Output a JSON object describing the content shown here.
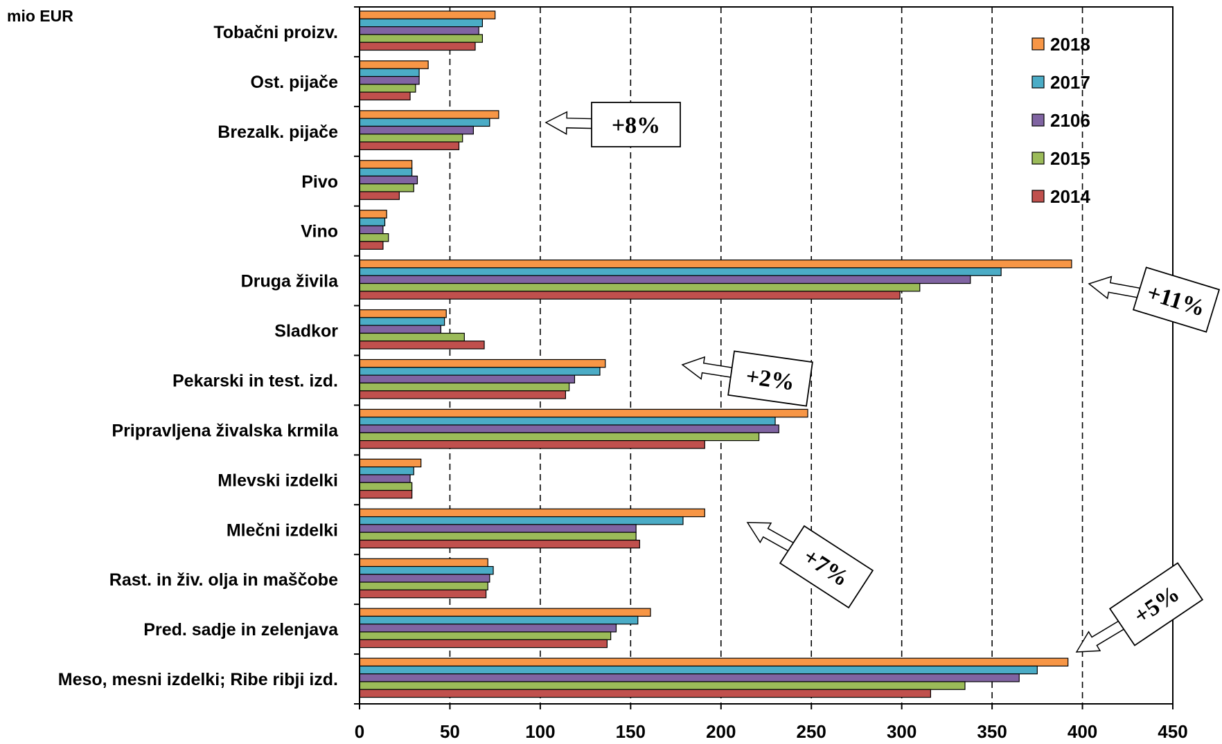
{
  "chart_data": {
    "type": "bar",
    "orientation": "horizontal",
    "unit_label": "mio EUR",
    "xlim": [
      0,
      450
    ],
    "x_ticks": [
      "0",
      "50",
      "100",
      "150",
      "200",
      "250",
      "300",
      "350",
      "400",
      "450"
    ],
    "grid": "vertical dashed",
    "legend_position": "top-right",
    "categories": [
      "Tobačni proizv.",
      "Ost. pijače",
      "Brezalk. pijače",
      "Pivo",
      "Vino",
      "Druga živila",
      "Sladkor",
      "Pekarski in test. izd.",
      "Pripravljena živalska krmila",
      "Mlevski izdelki",
      "Mlečni izdelki",
      "Rast. in živ. olja in maščobe",
      "Pred. sadje in zelenjava",
      "Meso, mesni izdelki; Ribe ribji izd."
    ],
    "series": [
      {
        "name": "2018",
        "color": "#F79646",
        "values": [
          75,
          38,
          77,
          29,
          15,
          394,
          48,
          136,
          248,
          34,
          191,
          71,
          161,
          392
        ]
      },
      {
        "name": "2017",
        "color": "#4BACC6",
        "values": [
          68,
          33,
          72,
          29,
          14,
          355,
          47,
          133,
          230,
          30,
          179,
          74,
          154,
          375
        ]
      },
      {
        "name": "2106",
        "color": "#8064A2",
        "values": [
          66,
          33,
          63,
          32,
          13,
          338,
          45,
          119,
          232,
          28,
          153,
          72,
          142,
          365
        ]
      },
      {
        "name": "2015",
        "color": "#9BBB59",
        "values": [
          68,
          31,
          57,
          30,
          16,
          310,
          58,
          116,
          221,
          29,
          153,
          71,
          139,
          335
        ]
      },
      {
        "name": "2014",
        "color": "#C0504D",
        "values": [
          64,
          28,
          55,
          22,
          13,
          299,
          69,
          114,
          191,
          29,
          155,
          70,
          137,
          316
        ]
      }
    ],
    "annotations": [
      {
        "text": "+8%",
        "category": "Brezalk. pijače"
      },
      {
        "text": "+11%",
        "category": "Druga živila"
      },
      {
        "text": "+2%",
        "category": "Pekarski in test. izd."
      },
      {
        "text": "+7%",
        "category": "Mlečni izdelki"
      },
      {
        "text": "+5%",
        "category": "Meso, mesni izdelki; Ribe ribji izd."
      }
    ]
  }
}
